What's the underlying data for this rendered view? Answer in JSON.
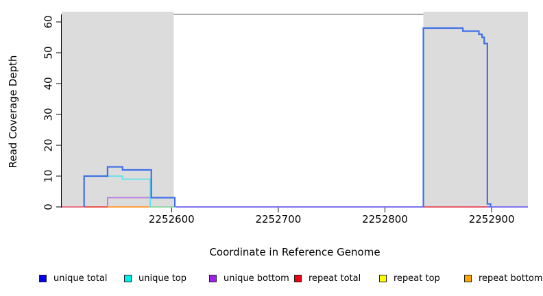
{
  "figure": {
    "xlabel": "Coordinate in Reference Genome",
    "ylabel": "Read Coverage Depth"
  },
  "chart_data": {
    "type": "line",
    "subtype": "step-coverage-plot",
    "title": "",
    "xlabel": "Coordinate in Reference Genome",
    "ylabel": "Read Coverage Depth",
    "xlim": [
      2252497,
      2252934
    ],
    "ylim": [
      0,
      62
    ],
    "grid": false,
    "legend_position": "bottom",
    "x_ticks": [
      2252600,
      2252700,
      2252800,
      2252900
    ],
    "y_ticks": [
      0,
      10,
      20,
      30,
      40,
      50,
      60
    ],
    "shaded_regions": [
      {
        "from": 2252497,
        "to": 2252602,
        "color": "#DCDCDC"
      },
      {
        "from": 2252836,
        "to": 2252934,
        "color": "#DCDCDC"
      }
    ],
    "series": [
      {
        "id": "unique-total",
        "name": "unique total",
        "legend_color": "#0000EE",
        "line_color": "#4070E8",
        "line_width": 2.2,
        "points": [
          [
            2252497,
            0
          ],
          [
            2252518,
            0
          ],
          [
            2252518,
            10
          ],
          [
            2252540,
            10
          ],
          [
            2252540,
            13
          ],
          [
            2252554,
            13
          ],
          [
            2252554,
            12
          ],
          [
            2252581,
            12
          ],
          [
            2252581,
            3
          ],
          [
            2252603,
            3
          ],
          [
            2252603,
            0
          ],
          [
            2252836,
            0
          ],
          [
            2252836,
            58
          ],
          [
            2252873,
            58
          ],
          [
            2252873,
            57
          ],
          [
            2252888,
            57
          ],
          [
            2252888,
            56
          ],
          [
            2252891,
            56
          ],
          [
            2252891,
            55
          ],
          [
            2252893,
            55
          ],
          [
            2252893,
            53
          ],
          [
            2252896,
            53
          ],
          [
            2252896,
            1
          ],
          [
            2252899,
            1
          ],
          [
            2252899,
            0
          ],
          [
            2252934,
            0
          ]
        ]
      },
      {
        "id": "unique-top",
        "name": "unique top",
        "legend_color": "#00EEEE",
        "line_color": "#5FE3E8",
        "line_width": 1.8,
        "points": [
          [
            2252497,
            0
          ],
          [
            2252518,
            0
          ],
          [
            2252518,
            10
          ],
          [
            2252554,
            10
          ],
          [
            2252554,
            9
          ],
          [
            2252580,
            9
          ],
          [
            2252580,
            0
          ],
          [
            2252934,
            0
          ]
        ]
      },
      {
        "id": "unique-bottom",
        "name": "unique bottom",
        "legend_color": "#A020F0",
        "line_color": "#B77BE0",
        "line_width": 1.8,
        "points": [
          [
            2252497,
            0
          ],
          [
            2252540,
            0
          ],
          [
            2252540,
            3
          ],
          [
            2252603,
            3
          ],
          [
            2252603,
            0
          ],
          [
            2252934,
            0
          ]
        ]
      },
      {
        "id": "repeat-total",
        "name": "repeat total",
        "legend_color": "#EE0011",
        "line_color": "#E8566A",
        "line_width": 1.8,
        "points": [
          [
            2252497,
            0
          ],
          [
            2252934,
            0
          ]
        ]
      },
      {
        "id": "repeat-top",
        "name": "repeat top",
        "legend_color": "#FFFF00",
        "line_color": "#F5E642",
        "line_width": 1.8,
        "points": [
          [
            2252497,
            0
          ],
          [
            2252934,
            0
          ]
        ]
      },
      {
        "id": "repeat-bottom",
        "name": "repeat bottom",
        "legend_color": "#FFA500",
        "line_color": "#FFA03C",
        "line_width": 1.8,
        "points": [
          [
            2252497,
            0
          ],
          [
            2252540,
            0
          ],
          [
            2252579,
            0
          ],
          [
            2252934,
            0
          ]
        ]
      }
    ],
    "baseline_segments": [
      {
        "from": 2252497,
        "to": 2252518,
        "color": "#E87286"
      },
      {
        "from": 2252518,
        "to": 2252540,
        "color": "#E8564E"
      },
      {
        "from": 2252540,
        "to": 2252579,
        "color": "#FFA03C"
      },
      {
        "from": 2252579,
        "to": 2252604,
        "color": "#97D8A8"
      },
      {
        "from": 2252604,
        "to": 2252836,
        "color": "#7B72EE"
      },
      {
        "from": 2252836,
        "to": 2252896,
        "color": "#E8566A"
      },
      {
        "from": 2252896,
        "to": 2252934,
        "color": "#7B72EE"
      }
    ],
    "legend": [
      {
        "label": "unique total",
        "color": "#0000EE"
      },
      {
        "label": "unique top",
        "color": "#00EEEE"
      },
      {
        "label": "unique bottom",
        "color": "#A020F0"
      },
      {
        "label": "repeat total",
        "color": "#EE0011"
      },
      {
        "label": "repeat top",
        "color": "#FFFF00"
      },
      {
        "label": "repeat bottom",
        "color": "#FFA500"
      }
    ]
  }
}
